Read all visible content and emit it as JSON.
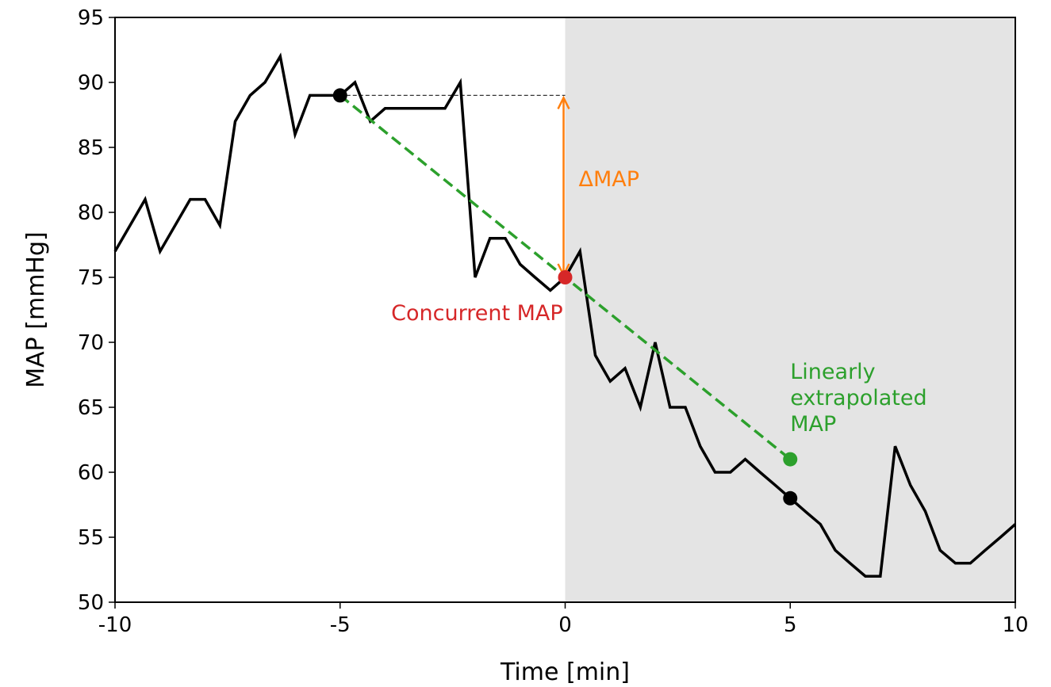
{
  "chart_data": {
    "type": "line",
    "title": "",
    "xlabel": "Time [min]",
    "ylabel": "MAP [mmHg]",
    "xlim": [
      -10,
      10
    ],
    "ylim": [
      50,
      95
    ],
    "xticks": [
      -10,
      -5,
      0,
      5,
      10
    ],
    "yticks": [
      50,
      55,
      60,
      65,
      70,
      75,
      80,
      85,
      90,
      95
    ],
    "grid": false,
    "shaded_region": {
      "x_start": 0,
      "x_end": 10,
      "color": "#e4e4e4"
    },
    "series": [
      {
        "color": "#000000",
        "x": [
          -10,
          -9.33,
          -9,
          -8.33,
          -8,
          -7.67,
          -7.33,
          -7,
          -6.67,
          -6.33,
          -6,
          -5.67,
          -5.33,
          -5,
          -4.67,
          -4.33,
          -4,
          -3.67,
          -3.33,
          -3,
          -2.67,
          -2.33,
          -2,
          -1.67,
          -1.33,
          -1,
          -0.67,
          -0.33,
          0,
          0.33,
          0.67,
          1,
          1.33,
          1.67,
          2,
          2.33,
          2.67,
          3,
          3.33,
          3.67,
          4,
          4.33,
          4.67,
          5,
          5.33,
          5.67,
          6,
          6.33,
          6.67,
          7,
          7.33,
          7.67,
          8,
          8.33,
          8.67,
          9,
          9.33,
          9.67,
          10
        ],
        "y": [
          77,
          81,
          77,
          81,
          81,
          79,
          87,
          89,
          90,
          92,
          86,
          89,
          89,
          89,
          90,
          87,
          88,
          88,
          88,
          88,
          88,
          90,
          75,
          78,
          78,
          76,
          75,
          74,
          75,
          77,
          69,
          67,
          68,
          65,
          70,
          65,
          65,
          62,
          60,
          60,
          61,
          60,
          59,
          58,
          57,
          56,
          54,
          53,
          52,
          52,
          62,
          59,
          57,
          54,
          53,
          53,
          54,
          55,
          56
        ]
      }
    ],
    "reference_line": {
      "x": [
        -5,
        0
      ],
      "y": 89,
      "color": "#333333",
      "style": "dashed"
    },
    "extrapolation_line": {
      "x": [
        -5,
        5
      ],
      "y": [
        89,
        61
      ],
      "color": "#2ca02c",
      "style": "dashed"
    },
    "points": [
      {
        "x": -5,
        "y": 89,
        "color": "#000000"
      },
      {
        "x": 0,
        "y": 75,
        "color": "#d62728"
      },
      {
        "x": 5,
        "y": 61,
        "color": "#2ca02c"
      },
      {
        "x": 5,
        "y": 58,
        "color": "#000000"
      }
    ],
    "delta_arrow": {
      "x": 0,
      "y_from": 89,
      "y_to": 75,
      "color": "#ff7f0e"
    },
    "annotations": {
      "delta": {
        "text": "ΔMAP",
        "x": 0.3,
        "y": 82,
        "color": "#ff7f0e"
      },
      "concurrent": {
        "text": "Concurrent MAP",
        "x": -0.05,
        "y": 71.7,
        "color": "#d62728"
      },
      "extrapolated": {
        "lines": [
          "Linearly",
          "extrapolated",
          "MAP"
        ],
        "x": 5,
        "y": 67.2,
        "color": "#2ca02c"
      }
    }
  }
}
